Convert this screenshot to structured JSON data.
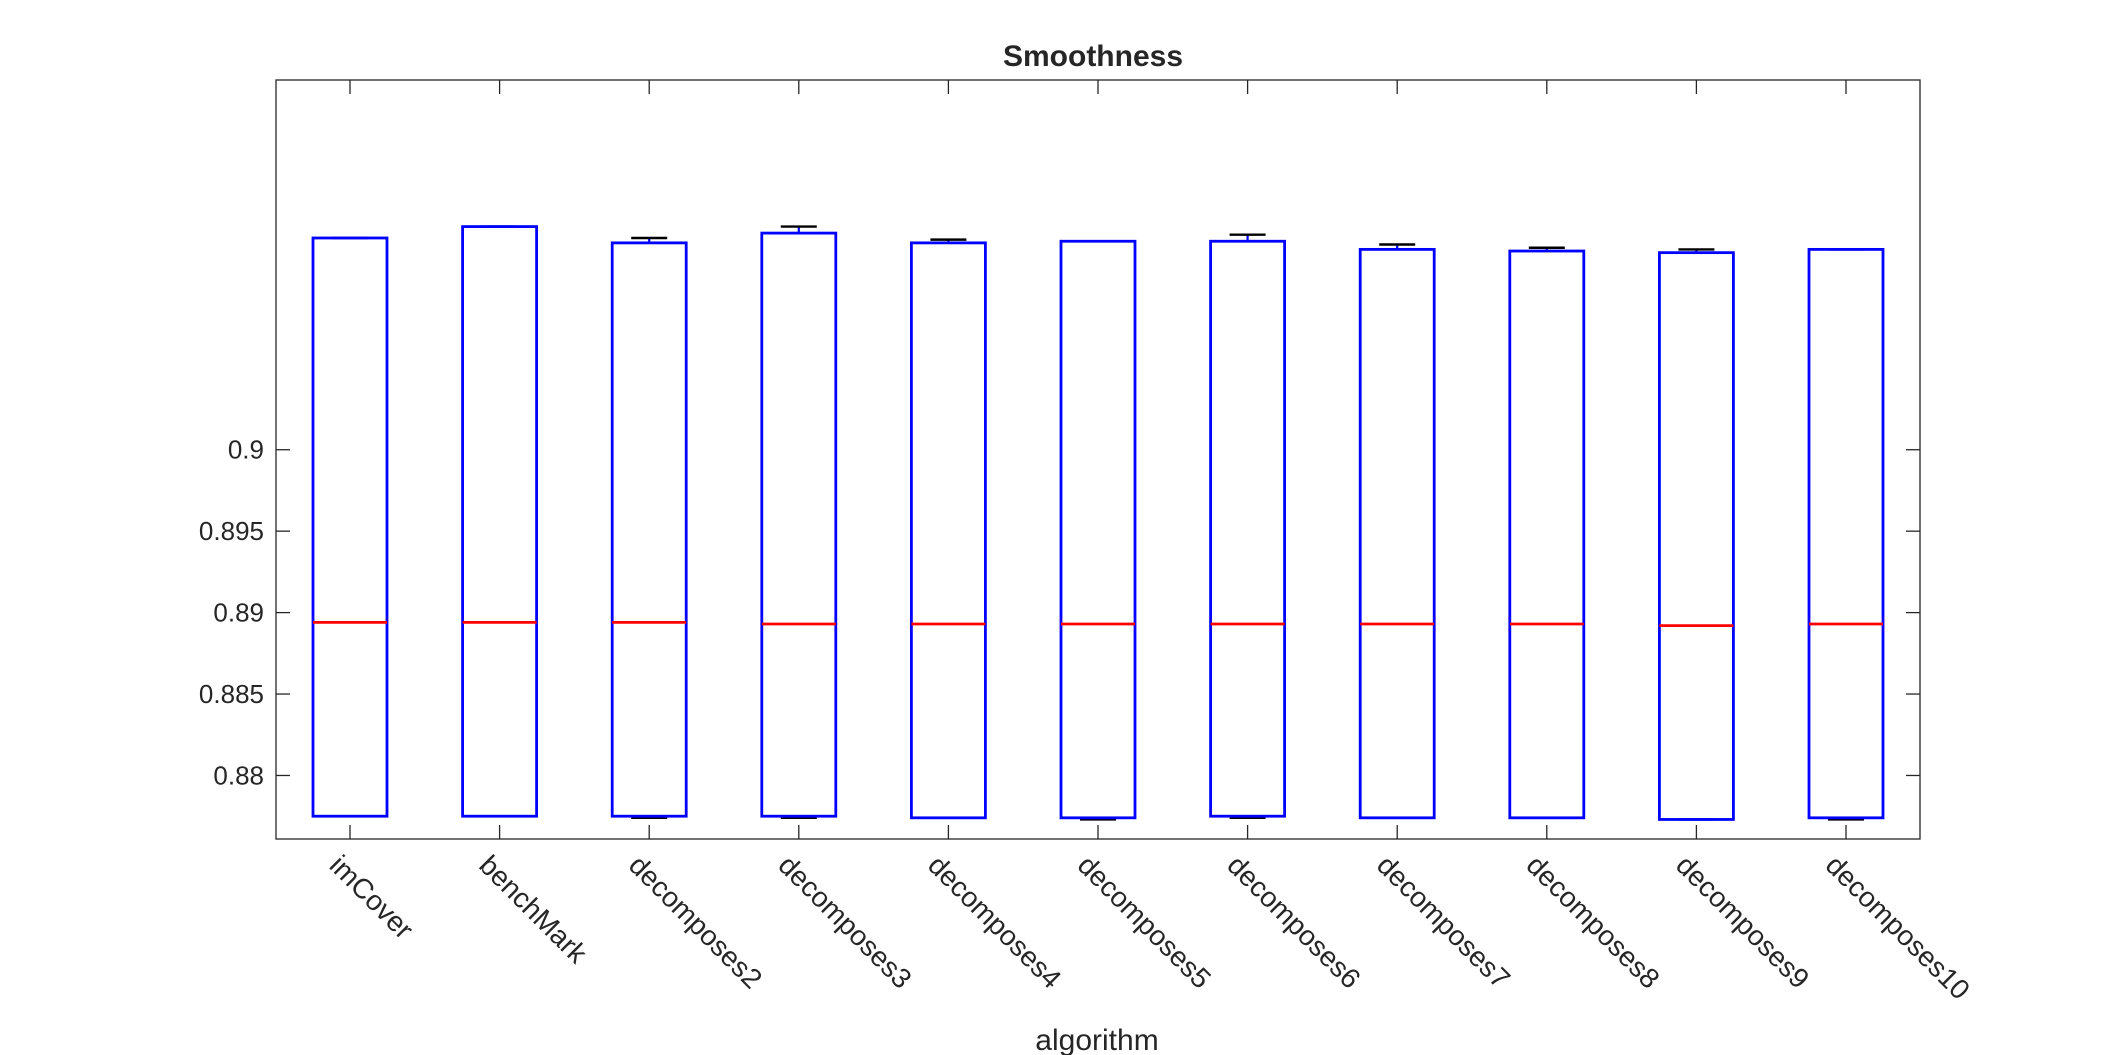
{
  "chart_data": {
    "type": "box",
    "title": "Smoothness",
    "xlabel": "algorithm",
    "ylabel": "",
    "ylim": [
      0.8761,
      0.9227
    ],
    "yticks": [
      0.88,
      0.885,
      0.89,
      0.895,
      0.9
    ],
    "ytick_labels": [
      "0.88",
      "0.885",
      "0.89",
      "0.895",
      "0.9"
    ],
    "grid": false,
    "categories": [
      "imCover",
      "benchMark",
      "decomposes2",
      "decomposes3",
      "decomposes4",
      "decomposes5",
      "decomposes6",
      "decomposes7",
      "decomposes8",
      "decomposes9",
      "decomposes10"
    ],
    "boxes": [
      {
        "min": 0.8775,
        "q1": 0.8775,
        "median": 0.8894,
        "q3": 0.913,
        "max": 0.913
      },
      {
        "min": 0.8775,
        "q1": 0.8775,
        "median": 0.8894,
        "q3": 0.9137,
        "max": 0.9137
      },
      {
        "min": 0.8774,
        "q1": 0.8775,
        "median": 0.8894,
        "q3": 0.9127,
        "max": 0.913
      },
      {
        "min": 0.8774,
        "q1": 0.8775,
        "median": 0.8893,
        "q3": 0.9133,
        "max": 0.9137
      },
      {
        "min": 0.8774,
        "q1": 0.8774,
        "median": 0.8893,
        "q3": 0.9127,
        "max": 0.9129
      },
      {
        "min": 0.8773,
        "q1": 0.8774,
        "median": 0.8893,
        "q3": 0.9128,
        "max": 0.9128
      },
      {
        "min": 0.8774,
        "q1": 0.8775,
        "median": 0.8893,
        "q3": 0.9128,
        "max": 0.9132
      },
      {
        "min": 0.8774,
        "q1": 0.8774,
        "median": 0.8893,
        "q3": 0.9123,
        "max": 0.9126
      },
      {
        "min": 0.8774,
        "q1": 0.8774,
        "median": 0.8893,
        "q3": 0.9122,
        "max": 0.9124
      },
      {
        "min": 0.8773,
        "q1": 0.8773,
        "median": 0.8892,
        "q3": 0.9121,
        "max": 0.9123
      },
      {
        "min": 0.8773,
        "q1": 0.8774,
        "median": 0.8893,
        "q3": 0.9123,
        "max": 0.9123
      }
    ],
    "colors": {
      "box": "#0000ff",
      "median": "#ff0000",
      "axis": "#262626"
    }
  }
}
